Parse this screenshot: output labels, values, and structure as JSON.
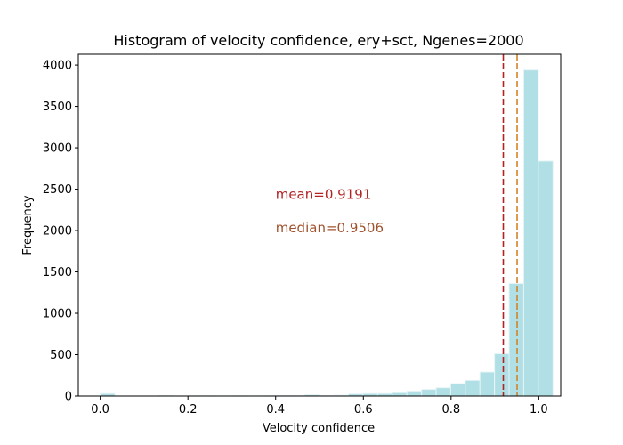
{
  "chart_data": {
    "type": "bar",
    "title": "Histogram of velocity confidence, ery+sct, Ngenes=2000",
    "xlabel": "Velocity confidence",
    "ylabel": "Frequency",
    "xlim": [
      -0.05,
      1.05
    ],
    "ylim": [
      0,
      4130
    ],
    "xticks": [
      0.0,
      0.2,
      0.4,
      0.6,
      0.8,
      1.0
    ],
    "xtick_labels": [
      "0.0",
      "0.2",
      "0.4",
      "0.6",
      "0.8",
      "1.0"
    ],
    "yticks": [
      0,
      500,
      1000,
      1500,
      2000,
      2500,
      3000,
      3500,
      4000
    ],
    "ytick_labels": [
      "0",
      "500",
      "1000",
      "1500",
      "2000",
      "2500",
      "3000",
      "3500",
      "4000"
    ],
    "bin_width": 0.0333,
    "bin_edges_start": 0.0,
    "values": [
      30,
      0,
      0,
      0,
      5,
      0,
      3,
      3,
      2,
      3,
      2,
      3,
      5,
      5,
      15,
      5,
      10,
      25,
      30,
      30,
      40,
      60,
      80,
      100,
      150,
      190,
      290,
      510,
      1360,
      3940,
      2840
    ],
    "bar_color": "#b0dfe5",
    "bar_edge_color": "#e6f4f6",
    "grid": false,
    "lines": [
      {
        "x": 0.9191,
        "color": "#b22222",
        "style": "dashed"
      },
      {
        "x": 0.9506,
        "color": "#d2832a",
        "style": "dashed"
      }
    ],
    "annotations": [
      {
        "text": "mean=0.9191",
        "x": 0.4,
        "y": 2380,
        "color": "#b22222"
      },
      {
        "text": "median=0.9506",
        "x": 0.4,
        "y": 1980,
        "color": "#a0522d"
      }
    ]
  }
}
